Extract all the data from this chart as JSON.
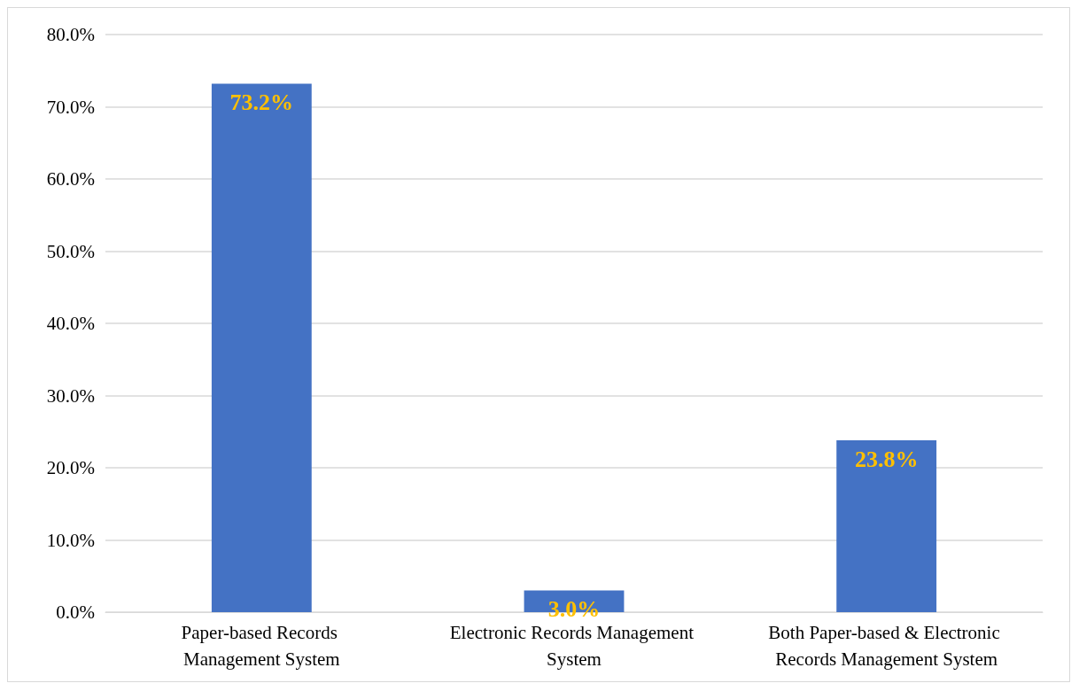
{
  "chart_data": {
    "type": "bar",
    "categories": [
      "Paper-based Records Management System",
      "Electronic Records Management System",
      "Both Paper-based & Electronic Records Management System"
    ],
    "values": [
      73.2,
      3.0,
      23.8
    ],
    "value_labels": [
      "73.2%",
      "3.0%",
      "23.8%"
    ],
    "color": "#4472c4",
    "ylim": [
      0,
      80
    ],
    "yticks": [
      {
        "value": 0,
        "label": "0.0%"
      },
      {
        "value": 10,
        "label": "10.0%"
      },
      {
        "value": 20,
        "label": "20.0%"
      },
      {
        "value": 30,
        "label": "30.0%"
      },
      {
        "value": 40,
        "label": "40.0%"
      },
      {
        "value": 50,
        "label": "50.0%"
      },
      {
        "value": 60,
        "label": "60.0%"
      },
      {
        "value": 70,
        "label": "70.0%"
      },
      {
        "value": 80,
        "label": "80.0%"
      }
    ],
    "grid": "y"
  }
}
